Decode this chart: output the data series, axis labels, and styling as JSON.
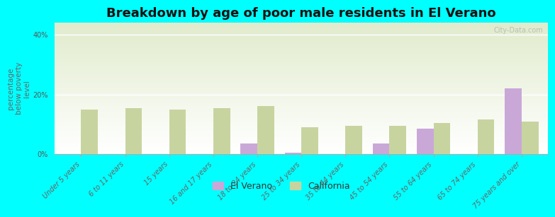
{
  "title": "Breakdown by age of poor male residents in El Verano",
  "ylabel": "percentage\nbelow poverty\nlevel",
  "categories": [
    "Under 5 years",
    "6 to 11 years",
    "15 years",
    "16 and 17 years",
    "18 to 24 years",
    "25 to 34 years",
    "35 to 44 years",
    "45 to 54 years",
    "55 to 64 years",
    "65 to 74 years",
    "75 years and over"
  ],
  "el_verano": [
    0,
    0,
    0,
    0,
    3.5,
    0.5,
    0,
    3.5,
    8.5,
    0,
    22.0
  ],
  "california": [
    15.0,
    15.5,
    15.0,
    15.5,
    16.0,
    9.0,
    9.5,
    9.5,
    10.5,
    11.5,
    11.0
  ],
  "el_verano_color": "#c9a8d8",
  "california_color": "#c8d4a0",
  "background_color": "#00ffff",
  "ylim": [
    0,
    44
  ],
  "yticks": [
    0,
    20,
    40
  ],
  "ytick_labels": [
    "0%",
    "20%",
    "40%"
  ],
  "bar_width": 0.38,
  "title_fontsize": 13,
  "axis_label_fontsize": 7.5,
  "tick_fontsize": 7,
  "legend_fontsize": 9,
  "watermark": "City-Data.com"
}
